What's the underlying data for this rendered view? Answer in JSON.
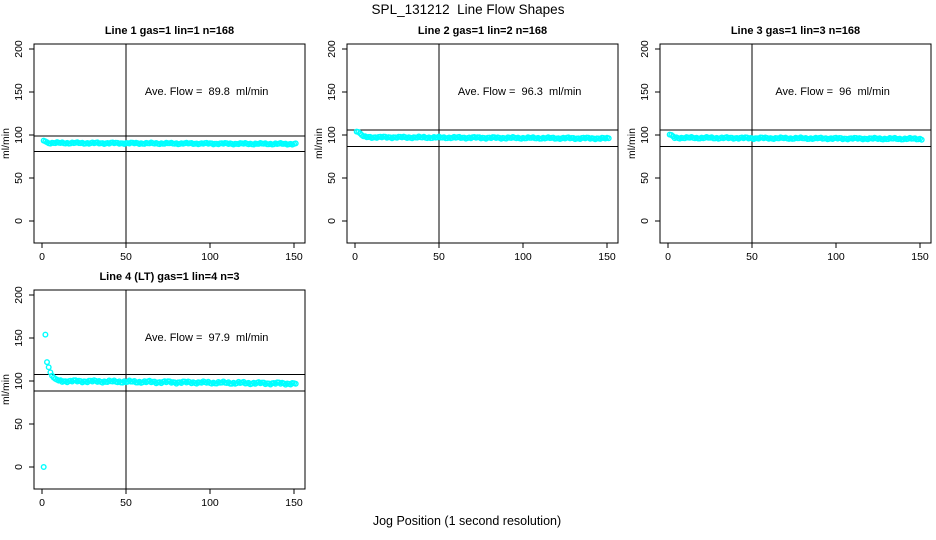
{
  "figure": {
    "title": "SPL_131212  Line Flow Shapes",
    "xlabel": "Jog Position (1 second resolution)",
    "ylabel": "ml/min",
    "point_color": "#00FFFF",
    "axis_color": "#000000",
    "background_color": "#FFFFFF"
  },
  "chart_data": [
    {
      "type": "scatter",
      "title": "Line 1 gas=1 lin=1 n=168",
      "annotation": "Ave. Flow =  89.8  ml/min",
      "ave_flow_ml_min": 89.8,
      "n": 168,
      "ylabel": "ml/min",
      "xticks": [
        0,
        50,
        100,
        150
      ],
      "yticks": [
        0,
        50,
        100,
        150,
        200
      ],
      "xlim": [
        0,
        151
      ],
      "ylim": [
        0,
        200
      ],
      "vline_x": 50,
      "ref_lines_y": [
        98.8,
        80.8
      ],
      "series": {
        "transient": [
          [
            1,
            93.5
          ],
          [
            2,
            92.5
          ],
          [
            3,
            91.5
          ]
        ],
        "steady": {
          "x_from": 4,
          "x_to": 151,
          "y_start": 90.8,
          "y_end": 89.6,
          "jitter": 1.0
        }
      }
    },
    {
      "type": "scatter",
      "title": "Line 2 gas=1 lin=2 n=168",
      "annotation": "Ave. Flow =  96.3  ml/min",
      "ave_flow_ml_min": 96.3,
      "n": 168,
      "ylabel": "ml/min",
      "xticks": [
        0,
        50,
        100,
        150
      ],
      "yticks": [
        0,
        50,
        100,
        150,
        200
      ],
      "xlim": [
        0,
        151
      ],
      "ylim": [
        0,
        200
      ],
      "vline_x": 50,
      "ref_lines_y": [
        105.9,
        86.7
      ],
      "series": {
        "transient": [
          [
            1,
            104
          ],
          [
            2,
            103.5
          ],
          [
            3,
            102
          ],
          [
            4,
            100
          ],
          [
            5,
            98.5
          ]
        ],
        "steady": {
          "x_from": 6,
          "x_to": 151,
          "y_start": 97.5,
          "y_end": 96.0,
          "jitter": 1.1
        }
      }
    },
    {
      "type": "scatter",
      "title": "Line 3 gas=1 lin=3 n=168",
      "annotation": "Ave. Flow =  96  ml/min",
      "ave_flow_ml_min": 96,
      "n": 168,
      "ylabel": "ml/min",
      "xticks": [
        0,
        50,
        100,
        150
      ],
      "yticks": [
        0,
        50,
        100,
        150,
        200
      ],
      "xlim": [
        0,
        151
      ],
      "ylim": [
        0,
        200
      ],
      "vline_x": 50,
      "ref_lines_y": [
        105.6,
        86.4
      ],
      "series": {
        "transient": [
          [
            1,
            100.5
          ],
          [
            2,
            100
          ],
          [
            3,
            98.5
          ]
        ],
        "steady": {
          "x_from": 4,
          "x_to": 151,
          "y_start": 96.8,
          "y_end": 95.5,
          "jitter": 1.1
        }
      }
    },
    {
      "type": "scatter",
      "title": "Line 4 (LT) gas=1 lin=4 n=3",
      "annotation": "Ave. Flow =  97.9  ml/min",
      "ave_flow_ml_min": 97.9,
      "n": 3,
      "ylabel": "ml/min",
      "xticks": [
        0,
        50,
        100,
        150
      ],
      "yticks": [
        0,
        50,
        100,
        150,
        200
      ],
      "xlim": [
        0,
        151
      ],
      "ylim": [
        0,
        200
      ],
      "vline_x": 50,
      "ref_lines_y": [
        107.7,
        88.1
      ],
      "series": {
        "transient": [
          [
            1,
            0
          ],
          [
            2,
            154
          ],
          [
            3,
            122
          ],
          [
            4,
            116
          ],
          [
            5,
            110
          ],
          [
            6,
            106
          ],
          [
            7,
            104
          ],
          [
            8,
            102.5
          ],
          [
            9,
            101.5
          ],
          [
            10,
            100.5
          ]
        ],
        "steady": {
          "x_from": 11,
          "x_to": 151,
          "y_start": 100,
          "y_end": 97,
          "jitter": 1.5
        }
      }
    }
  ]
}
